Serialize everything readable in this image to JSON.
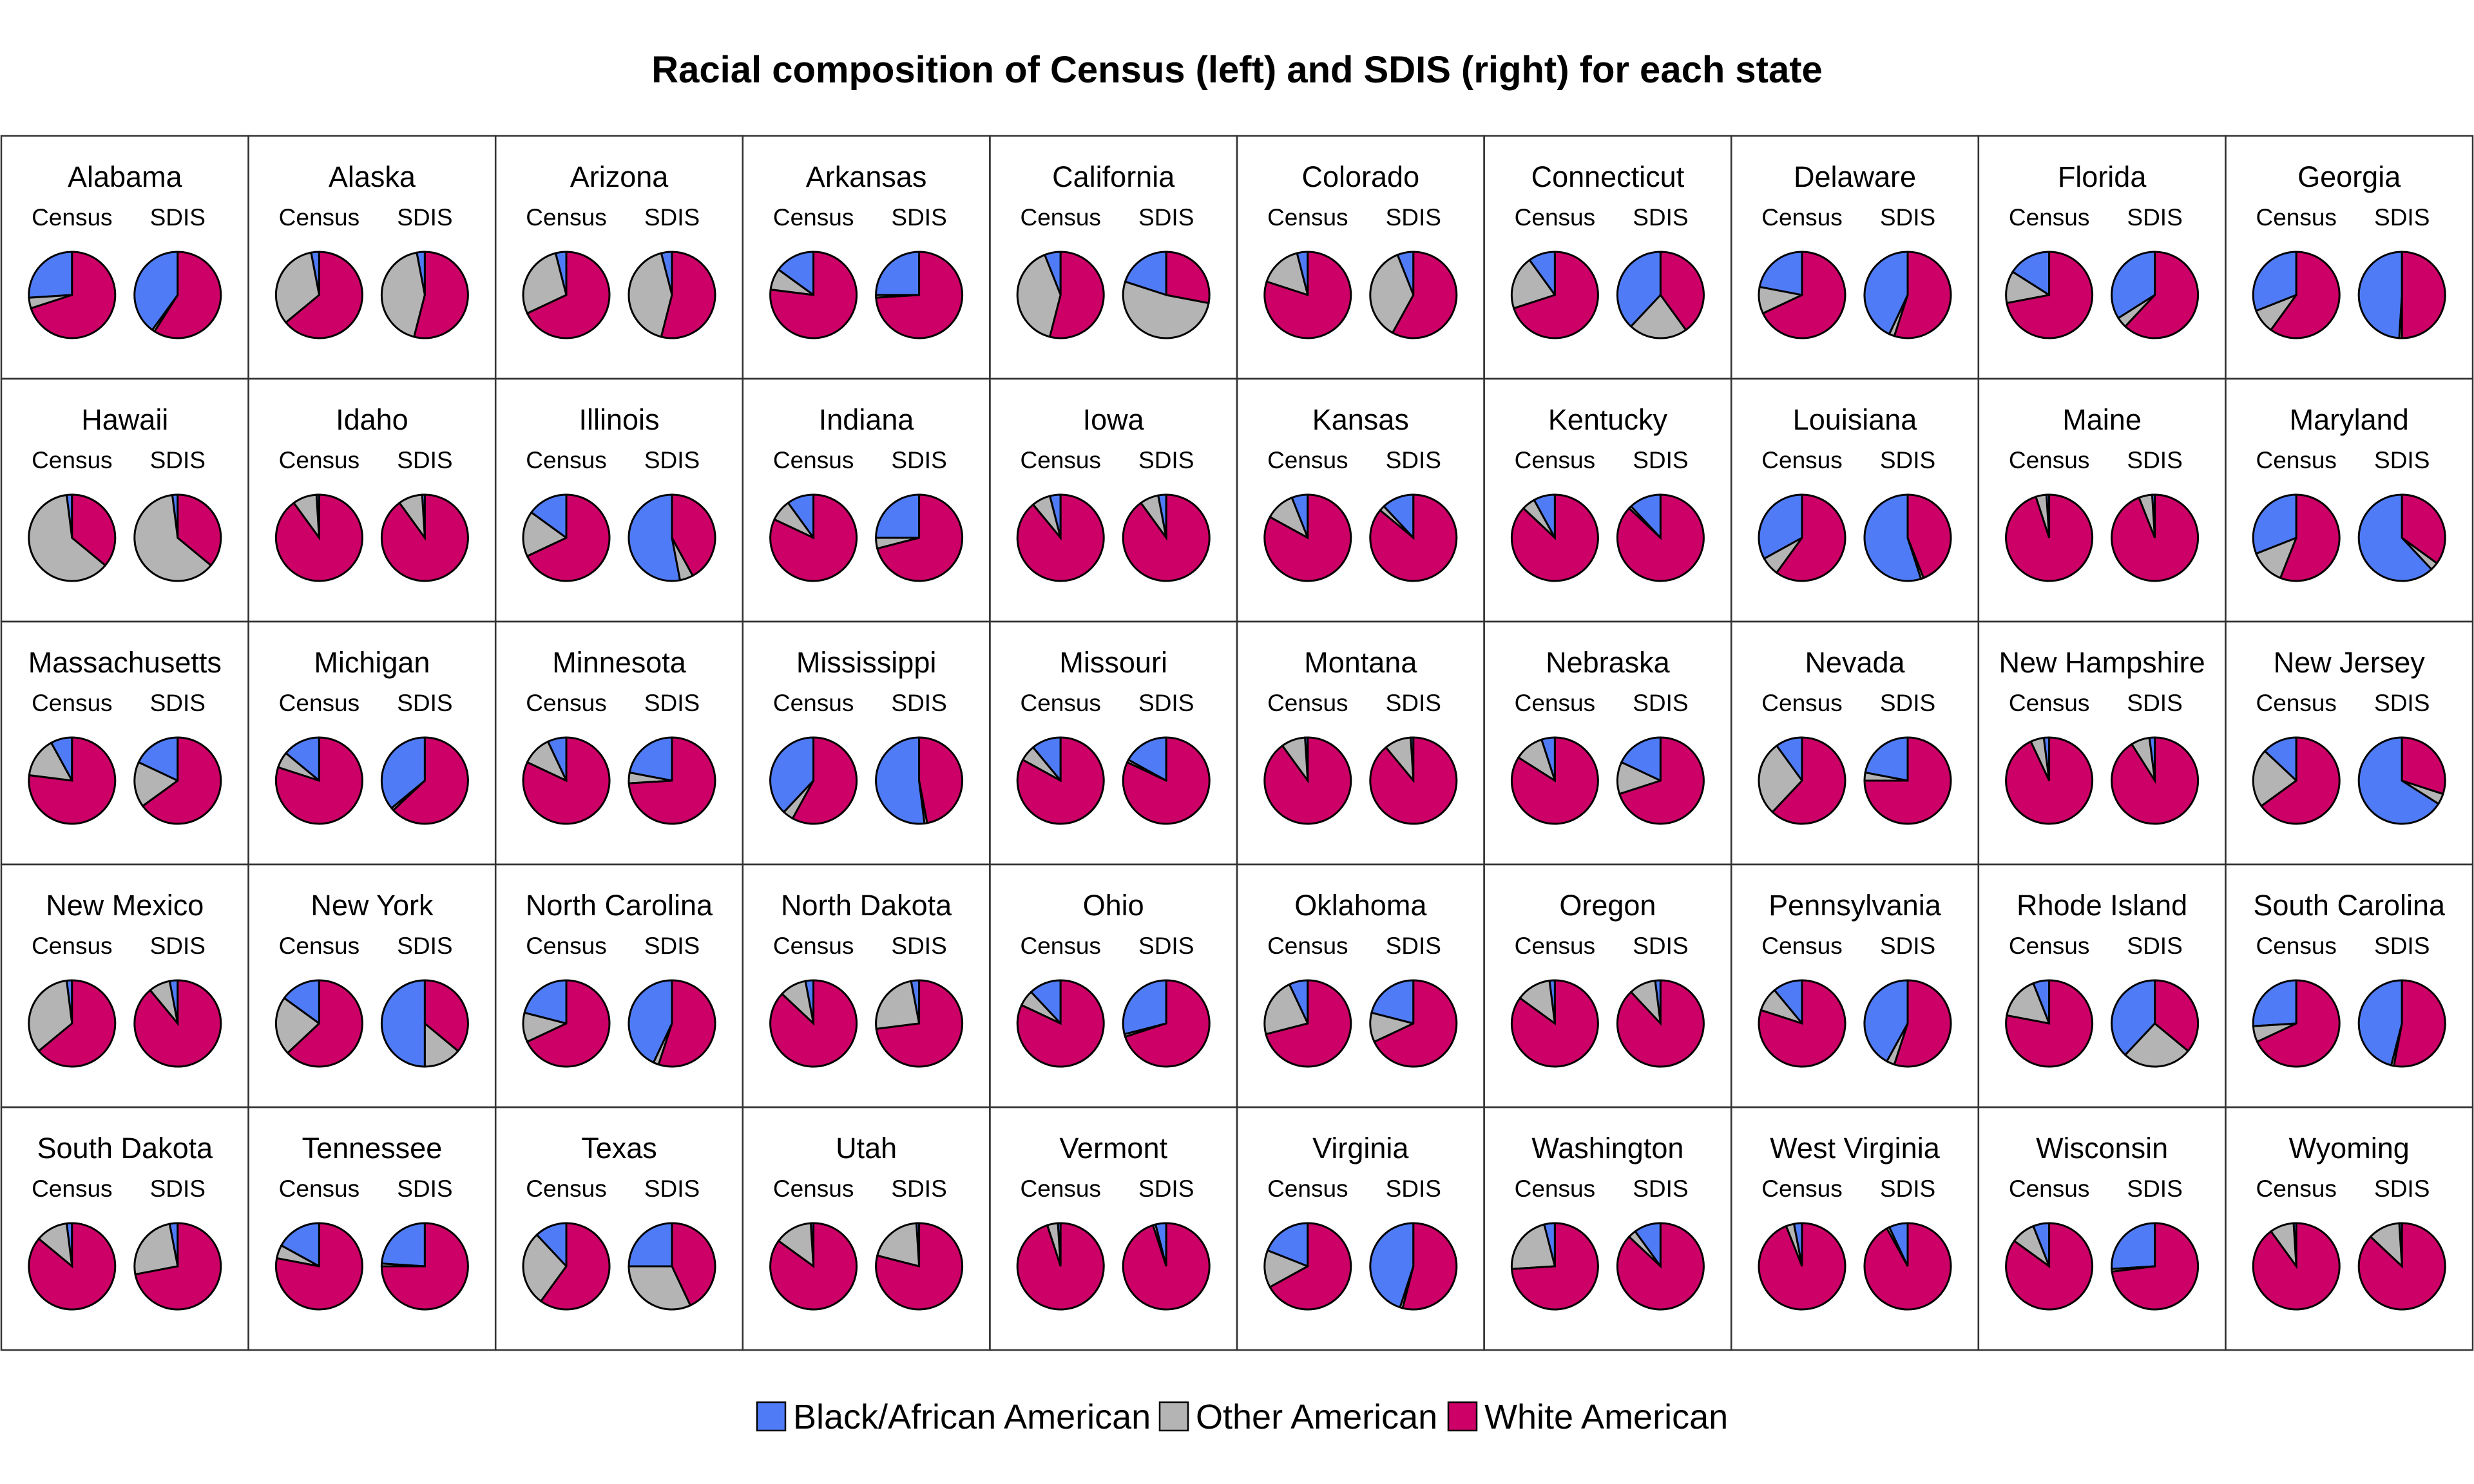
{
  "chart_data": {
    "type": "pie",
    "title": "Racial composition of Census (left) and SDIS (right) for each state",
    "pie_labels": [
      "Census",
      "SDIS"
    ],
    "categories": [
      "Black/African American",
      "Other American",
      "White American"
    ],
    "colors": {
      "Black/African American": "#4f7cf6",
      "Other American": "#b4b4b4",
      "White American": "#cc0066"
    },
    "legend_position": "bottom",
    "slice_order": "counter-clockwise from top: Black/African American, Other American, White American",
    "value_units": "percent",
    "states": [
      {
        "name": "Alabama",
        "census": [
          26,
          4,
          70
        ],
        "sdis": [
          40,
          1,
          59
        ]
      },
      {
        "name": "Alaska",
        "census": [
          3,
          33,
          64
        ],
        "sdis": [
          3,
          43,
          54
        ]
      },
      {
        "name": "Arizona",
        "census": [
          4,
          28,
          68
        ],
        "sdis": [
          4,
          42,
          54
        ]
      },
      {
        "name": "Arkansas",
        "census": [
          15,
          8,
          77
        ],
        "sdis": [
          25,
          1,
          74
        ]
      },
      {
        "name": "California",
        "census": [
          6,
          40,
          54
        ],
        "sdis": [
          20,
          52,
          28
        ]
      },
      {
        "name": "Colorado",
        "census": [
          4,
          16,
          80
        ],
        "sdis": [
          6,
          36,
          58
        ]
      },
      {
        "name": "Connecticut",
        "census": [
          10,
          20,
          70
        ],
        "sdis": [
          38,
          22,
          40
        ]
      },
      {
        "name": "Delaware",
        "census": [
          22,
          10,
          68
        ],
        "sdis": [
          43,
          2,
          55
        ]
      },
      {
        "name": "Florida",
        "census": [
          16,
          12,
          72
        ],
        "sdis": [
          34,
          4,
          62
        ]
      },
      {
        "name": "Georgia",
        "census": [
          31,
          9,
          60
        ],
        "sdis": [
          49,
          1,
          50
        ]
      },
      {
        "name": "Hawaii",
        "census": [
          2,
          62,
          36
        ],
        "sdis": [
          2,
          62,
          36
        ]
      },
      {
        "name": "Idaho",
        "census": [
          1,
          9,
          90
        ],
        "sdis": [
          1,
          9,
          90
        ]
      },
      {
        "name": "Illinois",
        "census": [
          15,
          17,
          68
        ],
        "sdis": [
          53,
          5,
          42
        ]
      },
      {
        "name": "Indiana",
        "census": [
          10,
          8,
          82
        ],
        "sdis": [
          25,
          4,
          71
        ]
      },
      {
        "name": "Iowa",
        "census": [
          4,
          7,
          89
        ],
        "sdis": [
          3,
          7,
          90
        ]
      },
      {
        "name": "Kansas",
        "census": [
          6,
          11,
          83
        ],
        "sdis": [
          12,
          2,
          86
        ]
      },
      {
        "name": "Kentucky",
        "census": [
          8,
          5,
          87
        ],
        "sdis": [
          12,
          1,
          87
        ]
      },
      {
        "name": "Louisiana",
        "census": [
          33,
          7,
          60
        ],
        "sdis": [
          55,
          1,
          44
        ]
      },
      {
        "name": "Maine",
        "census": [
          1,
          4,
          95
        ],
        "sdis": [
          1,
          5,
          94
        ]
      },
      {
        "name": "Maryland",
        "census": [
          31,
          13,
          56
        ],
        "sdis": [
          62,
          3,
          35
        ]
      },
      {
        "name": "Massachusetts",
        "census": [
          8,
          15,
          77
        ],
        "sdis": [
          18,
          17,
          65
        ]
      },
      {
        "name": "Michigan",
        "census": [
          14,
          6,
          80
        ],
        "sdis": [
          36,
          1,
          63
        ]
      },
      {
        "name": "Minnesota",
        "census": [
          7,
          11,
          82
        ],
        "sdis": [
          22,
          4,
          74
        ]
      },
      {
        "name": "Mississippi",
        "census": [
          38,
          4,
          58
        ],
        "sdis": [
          52,
          1,
          47
        ]
      },
      {
        "name": "Missouri",
        "census": [
          11,
          6,
          83
        ],
        "sdis": [
          17,
          1,
          82
        ]
      },
      {
        "name": "Montana",
        "census": [
          1,
          9,
          90
        ],
        "sdis": [
          1,
          10,
          89
        ]
      },
      {
        "name": "Nebraska",
        "census": [
          5,
          11,
          84
        ],
        "sdis": [
          18,
          12,
          70
        ]
      },
      {
        "name": "Nevada",
        "census": [
          10,
          28,
          62
        ],
        "sdis": [
          22,
          3,
          75
        ]
      },
      {
        "name": "New Hampshire",
        "census": [
          2,
          5,
          93
        ],
        "sdis": [
          2,
          7,
          91
        ]
      },
      {
        "name": "New Jersey",
        "census": [
          13,
          22,
          65
        ],
        "sdis": [
          66,
          4,
          30
        ]
      },
      {
        "name": "New Mexico",
        "census": [
          2,
          34,
          64
        ],
        "sdis": [
          3,
          8,
          89
        ]
      },
      {
        "name": "New York",
        "census": [
          15,
          22,
          63
        ],
        "sdis": [
          50,
          14,
          36
        ]
      },
      {
        "name": "North Carolina",
        "census": [
          21,
          11,
          68
        ],
        "sdis": [
          43,
          2,
          55
        ]
      },
      {
        "name": "North Dakota",
        "census": [
          3,
          10,
          87
        ],
        "sdis": [
          3,
          24,
          73
        ]
      },
      {
        "name": "Ohio",
        "census": [
          12,
          6,
          82
        ],
        "sdis": [
          29,
          1,
          70
        ]
      },
      {
        "name": "Oklahoma",
        "census": [
          7,
          22,
          71
        ],
        "sdis": [
          21,
          11,
          68
        ]
      },
      {
        "name": "Oregon",
        "census": [
          2,
          13,
          85
        ],
        "sdis": [
          2,
          10,
          88
        ]
      },
      {
        "name": "Pennsylvania",
        "census": [
          11,
          9,
          80
        ],
        "sdis": [
          42,
          3,
          55
        ]
      },
      {
        "name": "Rhode Island",
        "census": [
          6,
          16,
          78
        ],
        "sdis": [
          38,
          26,
          36
        ]
      },
      {
        "name": "South Carolina",
        "census": [
          26,
          6,
          68
        ],
        "sdis": [
          46,
          1,
          53
        ]
      },
      {
        "name": "South Dakota",
        "census": [
          2,
          12,
          86
        ],
        "sdis": [
          3,
          25,
          72
        ]
      },
      {
        "name": "Tennessee",
        "census": [
          17,
          5,
          78
        ],
        "sdis": [
          24,
          1,
          75
        ]
      },
      {
        "name": "Texas",
        "census": [
          12,
          28,
          60
        ],
        "sdis": [
          25,
          32,
          43
        ]
      },
      {
        "name": "Utah",
        "census": [
          1,
          14,
          85
        ],
        "sdis": [
          1,
          20,
          79
        ]
      },
      {
        "name": "Vermont",
        "census": [
          1,
          4,
          95
        ],
        "sdis": [
          4,
          1,
          95
        ]
      },
      {
        "name": "Virginia",
        "census": [
          19,
          14,
          67
        ],
        "sdis": [
          45,
          1,
          54
        ]
      },
      {
        "name": "Washington",
        "census": [
          4,
          22,
          74
        ],
        "sdis": [
          10,
          3,
          87
        ]
      },
      {
        "name": "West Virginia",
        "census": [
          3,
          3,
          94
        ],
        "sdis": [
          7,
          1,
          92
        ]
      },
      {
        "name": "Wisconsin",
        "census": [
          6,
          9,
          85
        ],
        "sdis": [
          26,
          1,
          73
        ]
      },
      {
        "name": "Wyoming",
        "census": [
          1,
          9,
          90
        ],
        "sdis": [
          1,
          12,
          87
        ]
      }
    ]
  }
}
